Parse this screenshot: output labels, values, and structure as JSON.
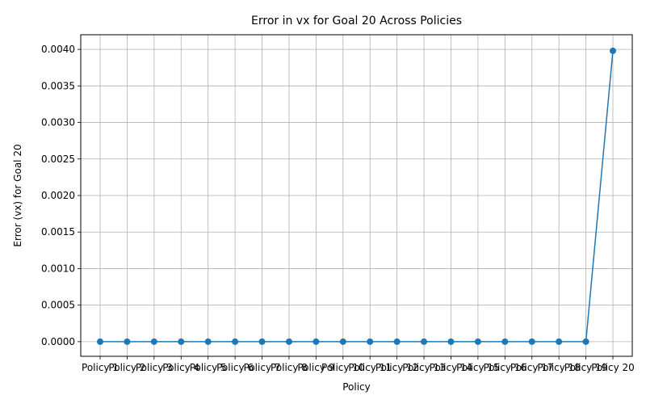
{
  "chart_data": {
    "type": "line",
    "title": "Error in vx for Goal 20 Across Policies",
    "xlabel": "Policy",
    "ylabel": "Error (vx) for Goal 20",
    "categories": [
      "Policy 1",
      "Policy 2",
      "Policy 3",
      "Policy 4",
      "Policy 5",
      "Policy 6",
      "Policy 7",
      "Policy 8",
      "Policy 9",
      "Policy 10",
      "Policy 11",
      "Policy 12",
      "Policy 13",
      "Policy 14",
      "Policy 15",
      "Policy 16",
      "Policy 17",
      "Policy 18",
      "Policy 19",
      "Policy 20"
    ],
    "series": [
      {
        "values": [
          0,
          0,
          0,
          0,
          0,
          0,
          0,
          0,
          0,
          0,
          0,
          0,
          0,
          0,
          0,
          0,
          0,
          0,
          0,
          0.00398
        ],
        "color": "#1f77b4",
        "marker": "circle"
      }
    ],
    "ylim": [
      -0.0002,
      0.0042
    ],
    "yticks": [
      "0.0000",
      "0.0005",
      "0.0010",
      "0.0015",
      "0.0020",
      "0.0025",
      "0.0030",
      "0.0035",
      "0.0040"
    ],
    "grid": true,
    "legend": "none"
  }
}
